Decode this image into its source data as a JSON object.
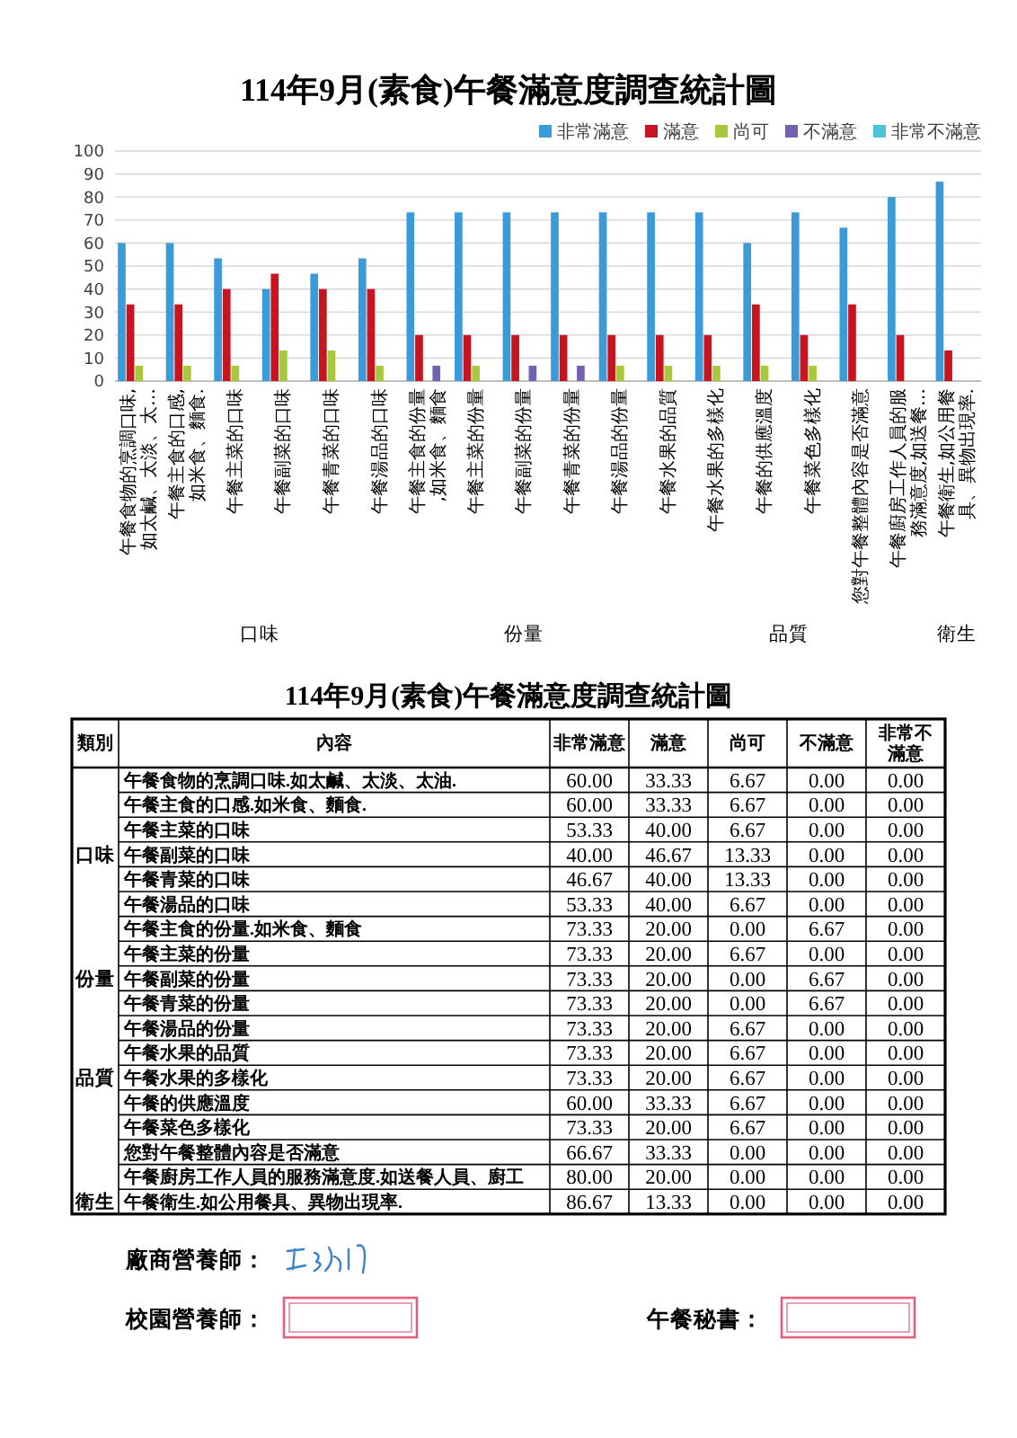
{
  "chart_data": [
    {
      "type": "bar",
      "title": "114年9月(素食)午餐滿意度調查統計圖",
      "categories": [
        "午餐食物的烹調口味,如太鹹、太淡、太…",
        "午餐主食的口感,如米食、麵食.",
        "午餐主菜的口味",
        "午餐副菜的口味",
        "午餐青菜的口味",
        "午餐湯品的口味",
        "午餐主食的份量,如米食、麵食",
        "午餐主菜的份量",
        "午餐副菜的份量",
        "午餐青菜的份量",
        "午餐湯品的份量",
        "午餐水果的品質",
        "午餐水果的多樣化",
        "午餐的供應溫度",
        "午餐菜色多樣化",
        "您對午餐整體內容是否滿意",
        "午餐廚房工作人員的服務滿意度,如送餐…",
        "午餐衛生,如公用餐具、異物出現率."
      ],
      "series": [
        {
          "name": "非常滿意",
          "color": "#3b9bd8",
          "values": [
            60,
            60,
            53.33,
            40,
            46.67,
            53.33,
            73.33,
            73.33,
            73.33,
            73.33,
            73.33,
            73.33,
            73.33,
            60,
            73.33,
            66.67,
            80,
            86.67
          ]
        },
        {
          "name": "滿意",
          "color": "#c8141e",
          "values": [
            33.33,
            33.33,
            40,
            46.67,
            40,
            40,
            20,
            20,
            20,
            20,
            20,
            20,
            20,
            33.33,
            20,
            33.33,
            20,
            13.33
          ]
        },
        {
          "name": "尚可",
          "color": "#a8c83c",
          "values": [
            6.67,
            6.67,
            6.67,
            13.33,
            13.33,
            6.67,
            0,
            6.67,
            0,
            0,
            6.67,
            6.67,
            6.67,
            6.67,
            6.67,
            0,
            0,
            0
          ]
        },
        {
          "name": "不滿意",
          "color": "#7461b0",
          "values": [
            0,
            0,
            0,
            0,
            0,
            0,
            6.67,
            0,
            6.67,
            6.67,
            0,
            0,
            0,
            0,
            0,
            0,
            0,
            0
          ]
        },
        {
          "name": "非常不滿意",
          "color": "#4cc3d9",
          "values": [
            0,
            0,
            0,
            0,
            0,
            0,
            0,
            0,
            0,
            0,
            0,
            0,
            0,
            0,
            0,
            0,
            0,
            0
          ]
        }
      ],
      "ylim": [
        0,
        100
      ],
      "yticks": [
        0,
        10,
        20,
        30,
        40,
        50,
        60,
        70,
        80,
        90,
        100
      ],
      "grid": "y",
      "legend": "top right",
      "annotations": [
        "口味",
        "份量",
        "品質",
        "衛生"
      ]
    },
    {
      "type": "other",
      "title": "114年9月(素食)午餐滿意度調查統計圖",
      "annotations": [
        "類別",
        "內容",
        {
          "text": "口味",
          "y": "午餐副菜的口味"
        },
        {
          "text": "份量",
          "y": "午餐副菜的份量"
        },
        {
          "text": "品質",
          "y": "午餐水果的多樣化"
        },
        {
          "text": "衛生",
          "y": "午餐衛生.如公用餐具、異物出現率."
        }
      ],
      "categories": [
        "午餐食物的烹調口味.如太鹹、太淡、太油.",
        "午餐主食的口感.如米食、麵食.",
        "午餐主菜的口味",
        "午餐副菜的口味",
        "午餐青菜的口味",
        "午餐湯品的口味",
        "午餐主食的份量.如米食、麵食",
        "午餐主菜的份量",
        "午餐副菜的份量",
        "午餐青菜的份量",
        "午餐湯品的份量",
        "午餐水果的品質",
        "午餐水果的多樣化",
        "午餐的供應溫度",
        "午餐菜色多樣化",
        "您對午餐整體內容是否滿意",
        "午餐廚房工作人員的服務滿意度.如送餐人員、廚工",
        "午餐衛生.如公用餐具、異物出現率."
      ],
      "series": [
        {
          "name": "非常滿意",
          "values": [
            60,
            60,
            53.33,
            40,
            46.67,
            53.33,
            73.33,
            73.33,
            73.33,
            73.33,
            73.33,
            73.33,
            73.33,
            60,
            73.33,
            66.67,
            80,
            86.67
          ],
          "value_labels": [
            "60.00",
            "60.00",
            "53.33",
            "40.00",
            "46.67",
            "53.33",
            "73.33",
            "73.33",
            "73.33",
            "73.33",
            "73.33",
            "73.33",
            "73.33",
            "60.00",
            "73.33",
            "66.67",
            "80.00",
            "86.67"
          ]
        },
        {
          "name": "滿意",
          "values": [
            33.33,
            33.33,
            40,
            46.67,
            40,
            40,
            20,
            20,
            20,
            20,
            20,
            20,
            20,
            33.33,
            20,
            33.33,
            20,
            13.33
          ],
          "value_labels": [
            "33.33",
            "33.33",
            "40.00",
            "46.67",
            "40.00",
            "40.00",
            "20.00",
            "20.00",
            "20.00",
            "20.00",
            "20.00",
            "20.00",
            "20.00",
            "33.33",
            "20.00",
            "33.33",
            "20.00",
            "13.33"
          ]
        },
        {
          "name": "尚可",
          "values": [
            6.67,
            6.67,
            6.67,
            13.33,
            13.33,
            6.67,
            0,
            6.67,
            0,
            0,
            6.67,
            6.67,
            6.67,
            6.67,
            6.67,
            0,
            0,
            0
          ],
          "value_labels": [
            "6.67",
            "6.67",
            "6.67",
            "13.33",
            "13.33",
            "6.67",
            "0.00",
            "6.67",
            "0.00",
            "0.00",
            "6.67",
            "6.67",
            "6.67",
            "6.67",
            "6.67",
            "0.00",
            "0.00",
            "0.00"
          ]
        },
        {
          "name": "不滿意",
          "values": [
            0,
            0,
            0,
            0,
            0,
            0,
            6.67,
            0,
            6.67,
            6.67,
            0,
            0,
            0,
            0,
            0,
            0,
            0,
            0
          ],
          "value_labels": [
            "0.00",
            "0.00",
            "0.00",
            "0.00",
            "0.00",
            "0.00",
            "6.67",
            "0.00",
            "6.67",
            "6.67",
            "0.00",
            "0.00",
            "0.00",
            "0.00",
            "0.00",
            "0.00",
            "0.00",
            "0.00"
          ]
        },
        {
          "name": "非常不滿意",
          "values": [
            0,
            0,
            0,
            0,
            0,
            0,
            0,
            0,
            0,
            0,
            0,
            0,
            0,
            0,
            0,
            0,
            0,
            0
          ],
          "value_labels": [
            "0.00",
            "0.00",
            "0.00",
            "0.00",
            "0.00",
            "0.00",
            "0.00",
            "0.00",
            "0.00",
            "0.00",
            "0.00",
            "0.00",
            "0.00",
            "0.00",
            "0.00",
            "0.00",
            "0.00",
            "0.00"
          ]
        }
      ]
    },
    {
      "type": "other",
      "annotations": [
        "廠商營養師：",
        "校園營養師：",
        "午餐秘書："
      ]
    }
  ]
}
